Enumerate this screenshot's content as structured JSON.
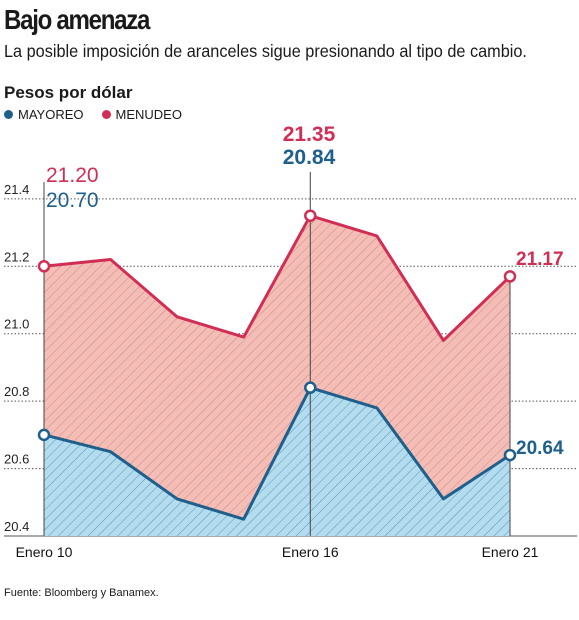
{
  "header": {
    "title": "Bajo amenaza",
    "subtitle": "La posible imposición de aranceles sigue presionando al tipo de cambio."
  },
  "source": "Fuente: Bloomberg y Banamex.",
  "colors": {
    "mayoreo": "#1e5f8c",
    "menudeo": "#d12e55",
    "mayoreo_fill": "#b3dcef",
    "menudeo_fill": "#f4bdb6"
  },
  "chart_data": {
    "type": "area",
    "ylabel": "Pesos por dólar",
    "ylim": [
      20.4,
      21.45
    ],
    "yticks": [
      "20.4",
      "20.6",
      "20.8",
      "21.0",
      "21.2",
      "21.4"
    ],
    "x": [
      0,
      1,
      2,
      3,
      4,
      5,
      6,
      7
    ],
    "xticks": [
      {
        "index": 0,
        "label": "Enero 10"
      },
      {
        "index": 4,
        "label": "Enero 16"
      },
      {
        "index": 7,
        "label": "Enero 21"
      }
    ],
    "series": [
      {
        "name": "MAYOREO",
        "values": [
          20.7,
          20.65,
          20.51,
          20.45,
          20.84,
          20.78,
          20.51,
          20.64
        ],
        "annotations": [
          {
            "index": 0,
            "label": "20.70"
          },
          {
            "index": 4,
            "label": "20.84"
          },
          {
            "index": 7,
            "label": "20.64"
          }
        ]
      },
      {
        "name": "MENUDEO",
        "values": [
          21.2,
          21.22,
          21.05,
          20.99,
          21.35,
          21.29,
          20.98,
          21.17
        ],
        "annotations": [
          {
            "index": 0,
            "label": "21.20"
          },
          {
            "index": 4,
            "label": "21.35"
          },
          {
            "index": 7,
            "label": "21.17"
          }
        ]
      }
    ],
    "grid": true,
    "legend": "top-left"
  }
}
